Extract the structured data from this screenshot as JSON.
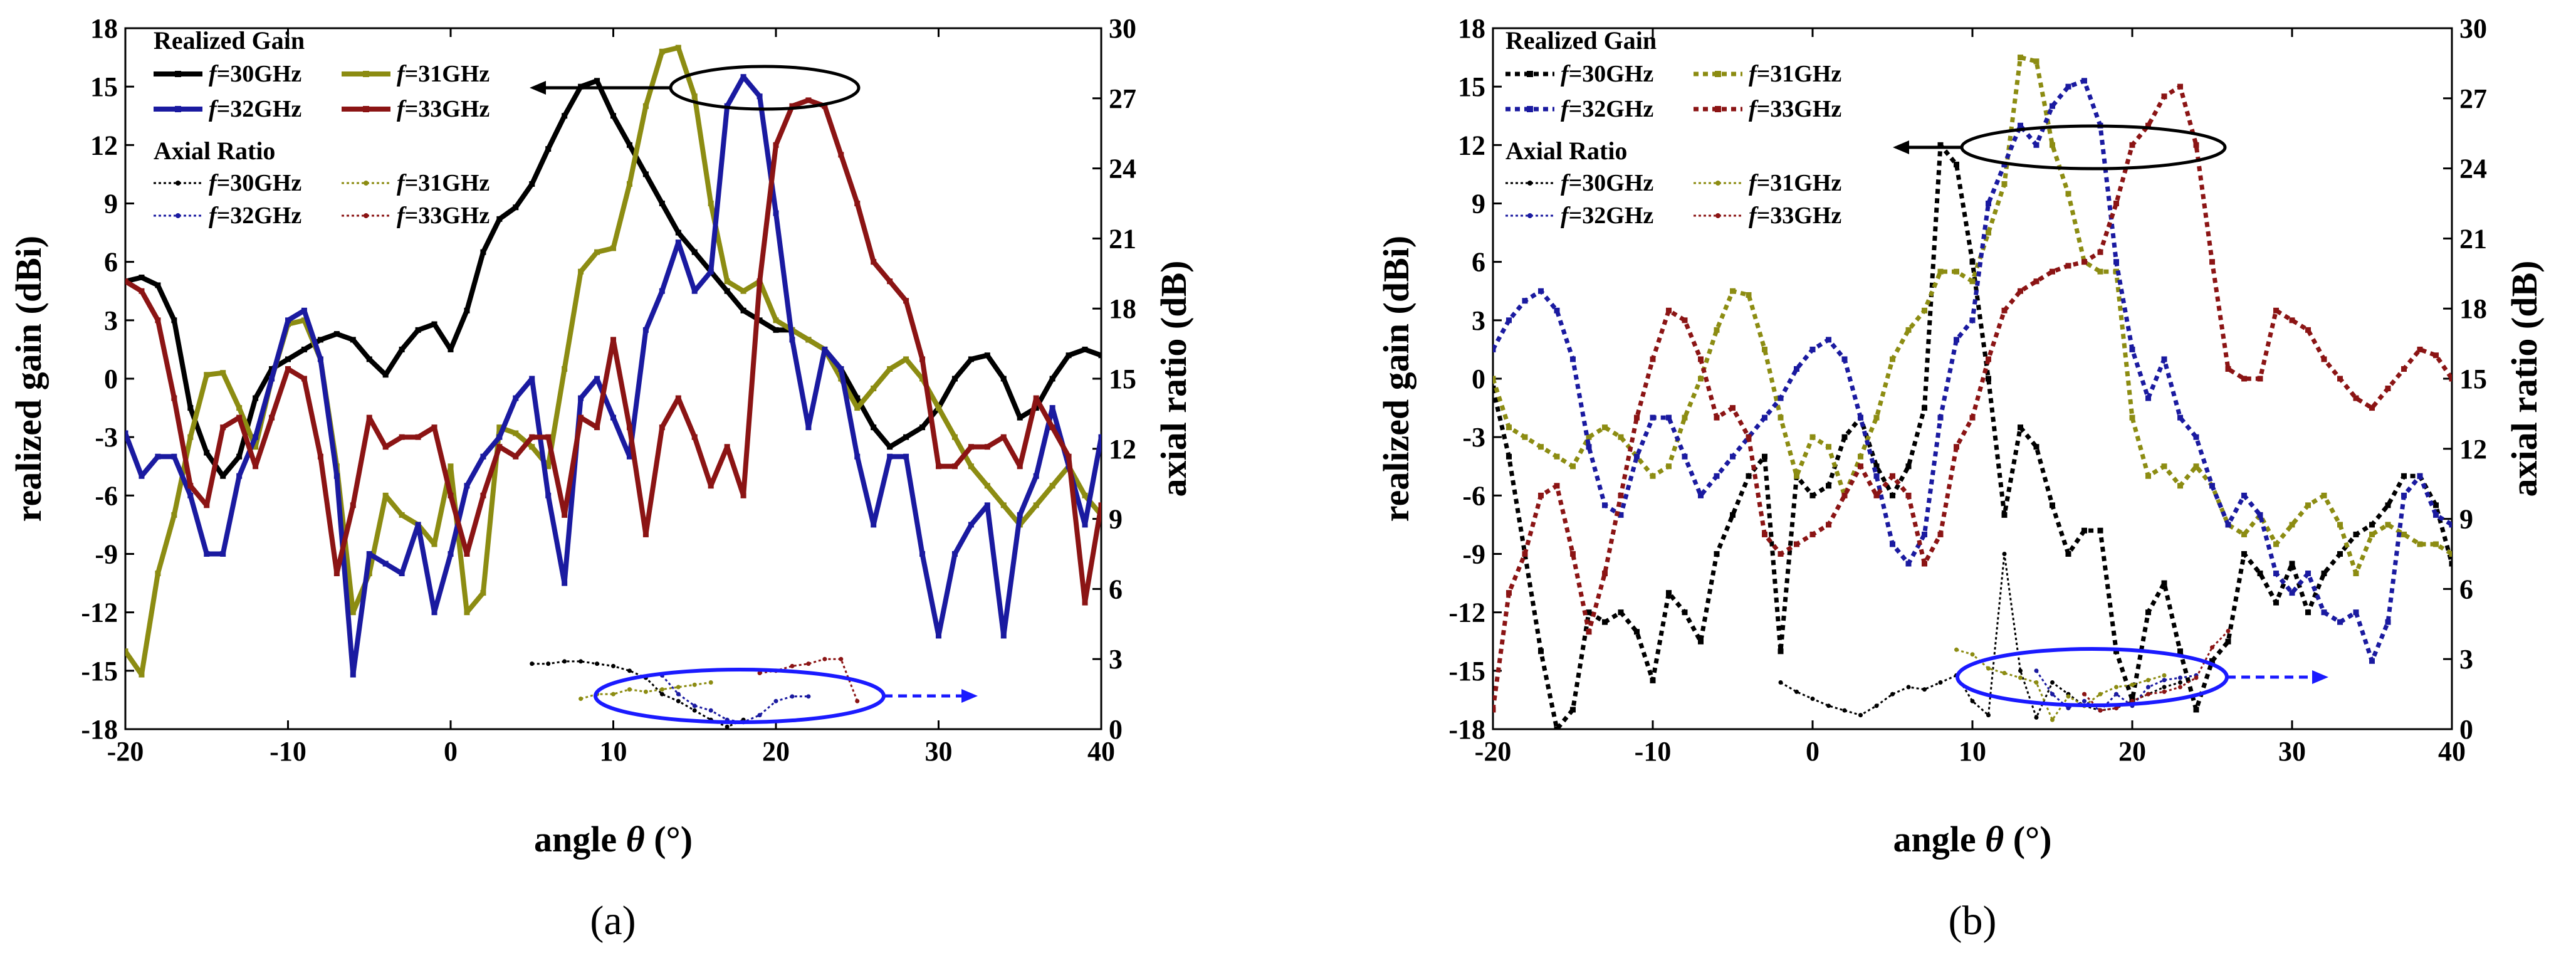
{
  "chart_data": [
    {
      "panel_label": "(a)",
      "type": "line",
      "xlabel": "angle θ (°)",
      "ylabel": "realized gain (dBi)",
      "y2label": "axial ratio (dB)",
      "xlim": [
        -20,
        40
      ],
      "ylim": [
        -18,
        18
      ],
      "y2lim": [
        0,
        30
      ],
      "xticks": [
        -20,
        -10,
        0,
        10,
        20,
        30,
        40
      ],
      "yticks": [
        -18,
        -15,
        -12,
        -9,
        -6,
        -3,
        0,
        3,
        6,
        9,
        12,
        15,
        18
      ],
      "y2ticks": [
        0,
        3,
        6,
        9,
        12,
        15,
        18,
        21,
        24,
        27,
        30
      ],
      "legend_title_gain": "Realized Gain",
      "legend_title_ar": "Axial Ratio",
      "gain_style": "solid",
      "x": [
        -20,
        -19,
        -18,
        -17,
        -16,
        -15,
        -14,
        -13,
        -12,
        -11,
        -10,
        -9,
        -8,
        -7,
        -6,
        -5,
        -4,
        -3,
        -2,
        -1,
        0,
        1,
        2,
        3,
        4,
        5,
        6,
        7,
        8,
        9,
        10,
        11,
        12,
        13,
        14,
        15,
        16,
        17,
        18,
        19,
        20,
        21,
        22,
        23,
        24,
        25,
        26,
        27,
        28,
        29,
        30,
        31,
        32,
        33,
        34,
        35,
        36,
        37,
        38,
        39,
        40
      ],
      "series_gain": [
        {
          "name": "f=30GHz",
          "freq": "=30GHz",
          "color": "#000000",
          "values": [
            5.0,
            5.2,
            4.8,
            3.0,
            -1.5,
            -3.8,
            -5.0,
            -4.0,
            -1.0,
            0.5,
            1.0,
            1.5,
            2.0,
            2.3,
            2.0,
            1.0,
            0.2,
            1.5,
            2.5,
            2.8,
            1.5,
            3.5,
            6.5,
            8.2,
            8.8,
            10.0,
            11.8,
            13.5,
            15.0,
            15.3,
            13.5,
            12.0,
            10.5,
            9.0,
            7.5,
            6.5,
            5.5,
            4.5,
            3.5,
            3.0,
            2.5,
            2.5,
            2.0,
            1.5,
            0.5,
            -1.0,
            -2.5,
            -3.5,
            -3.0,
            -2.5,
            -1.5,
            0.0,
            1.0,
            1.2,
            0.0,
            -2.0,
            -1.5,
            0.0,
            1.2,
            1.5,
            1.2
          ]
        },
        {
          "name": "f=31GHz",
          "freq": "=31GHz",
          "color": "#8c8c12",
          "values": [
            -14.0,
            -15.2,
            -10.0,
            -7.0,
            -3.0,
            0.2,
            0.3,
            -1.5,
            -3.5,
            0.0,
            2.8,
            3.0,
            1.0,
            -4.5,
            -12.0,
            -10.0,
            -6.0,
            -7.0,
            -7.5,
            -8.5,
            -4.5,
            -12.0,
            -11.0,
            -2.5,
            -2.8,
            -3.5,
            -4.5,
            0.5,
            5.5,
            6.5,
            6.7,
            10.0,
            14.0,
            16.8,
            17.0,
            14.5,
            9.0,
            5.0,
            4.5,
            5.0,
            3.0,
            2.5,
            2.0,
            1.5,
            0.0,
            -1.5,
            -0.5,
            0.5,
            1.0,
            0.0,
            -1.5,
            -3.0,
            -4.5,
            -5.5,
            -6.5,
            -7.5,
            -6.5,
            -5.5,
            -4.5,
            -6.0,
            -7.0
          ]
        },
        {
          "name": "f=32GHz",
          "freq": "=32GHz",
          "color": "#1a1aa0",
          "values": [
            -2.8,
            -5.0,
            -4.0,
            -4.0,
            -6.0,
            -9.0,
            -9.0,
            -5.0,
            -3.0,
            0.0,
            3.0,
            3.5,
            1.0,
            -5.0,
            -15.2,
            -9.0,
            -9.5,
            -10.0,
            -7.5,
            -12.0,
            -9.0,
            -5.5,
            -4.0,
            -3.0,
            -1.0,
            0.0,
            -6.0,
            -10.5,
            -1.0,
            0.0,
            -2.0,
            -4.0,
            2.5,
            4.5,
            7.0,
            4.5,
            5.5,
            14.0,
            15.5,
            14.5,
            8.5,
            2.0,
            -2.5,
            1.5,
            0.5,
            -4.0,
            -7.5,
            -4.0,
            -4.0,
            -9.0,
            -13.2,
            -9.0,
            -7.5,
            -6.5,
            -13.2,
            -7.0,
            -5.0,
            -1.5,
            -4.5,
            -7.5,
            -3.0
          ]
        },
        {
          "name": "f=33GHz",
          "freq": "=33GHz",
          "color": "#8b1414",
          "values": [
            5.0,
            4.5,
            3.0,
            -1.0,
            -5.5,
            -6.5,
            -2.5,
            -2.0,
            -4.5,
            -2.0,
            0.5,
            0.0,
            -4.0,
            -10.0,
            -6.5,
            -2.0,
            -3.5,
            -3.0,
            -3.0,
            -2.5,
            -6.0,
            -9.0,
            -6.0,
            -3.5,
            -4.0,
            -3.0,
            -3.0,
            -7.0,
            -2.0,
            -2.5,
            2.0,
            -2.5,
            -8.0,
            -2.5,
            -1.0,
            -3.0,
            -5.5,
            -3.5,
            -6.0,
            5.0,
            12.0,
            14.0,
            14.3,
            14.0,
            11.5,
            9.0,
            6.0,
            5.0,
            4.0,
            1.0,
            -4.5,
            -4.5,
            -3.5,
            -3.5,
            -3.0,
            -4.5,
            -1.0,
            -2.5,
            -4.0,
            -11.5,
            -6.5
          ]
        }
      ],
      "series_ar": [
        {
          "name": "f=30GHz",
          "freq": "=30GHz",
          "color": "#000000",
          "x": [
            5,
            6,
            7,
            8,
            9,
            10,
            11,
            12,
            13,
            14,
            15,
            16,
            17,
            18
          ],
          "values": [
            2.8,
            2.8,
            2.9,
            2.9,
            2.8,
            2.7,
            2.5,
            2.2,
            1.5,
            1.2,
            0.8,
            0.4,
            0.1,
            0.4
          ]
        },
        {
          "name": "f=31GHz",
          "freq": "=31GHz",
          "color": "#8c8c12",
          "x": [
            8,
            9,
            10,
            11,
            12,
            13,
            14,
            15,
            16
          ],
          "values": [
            1.3,
            1.5,
            1.5,
            1.7,
            1.6,
            1.7,
            1.8,
            1.9,
            2.0
          ]
        },
        {
          "name": "f=32GHz",
          "freq": "=32GHz",
          "color": "#1a1aa0",
          "x": [
            13,
            14,
            15,
            16,
            17,
            18,
            19,
            20,
            21,
            22
          ],
          "values": [
            2.3,
            1.5,
            1.0,
            0.8,
            0.4,
            0.3,
            0.6,
            1.2,
            1.4,
            1.4
          ]
        },
        {
          "name": "f=33GHz",
          "freq": "=33GHz",
          "color": "#8b1414",
          "x": [
            19,
            20,
            21,
            22,
            23,
            24,
            25
          ],
          "values": [
            2.4,
            2.5,
            2.7,
            2.8,
            3.0,
            3.0,
            1.2
          ]
        }
      ]
    },
    {
      "panel_label": "(b)",
      "type": "line",
      "xlabel": "angle θ (°)",
      "ylabel": "realized gain (dBi)",
      "y2label": "axial ratio (dB)",
      "xlim": [
        -20,
        40
      ],
      "ylim": [
        -18,
        18
      ],
      "y2lim": [
        0,
        30
      ],
      "xticks": [
        -20,
        -10,
        0,
        10,
        20,
        30,
        40
      ],
      "yticks": [
        -18,
        -15,
        -12,
        -9,
        -6,
        -3,
        0,
        3,
        6,
        9,
        12,
        15,
        18
      ],
      "y2ticks": [
        0,
        3,
        6,
        9,
        12,
        15,
        18,
        21,
        24,
        27,
        30
      ],
      "legend_title_gain": "Realized Gain",
      "legend_title_ar": "Axial Ratio",
      "gain_style": "dashed",
      "x": [
        -20,
        -19,
        -18,
        -17,
        -16,
        -15,
        -14,
        -13,
        -12,
        -11,
        -10,
        -9,
        -8,
        -7,
        -6,
        -5,
        -4,
        -3,
        -2,
        -1,
        0,
        1,
        2,
        3,
        4,
        5,
        6,
        7,
        8,
        9,
        10,
        11,
        12,
        13,
        14,
        15,
        16,
        17,
        18,
        19,
        20,
        21,
        22,
        23,
        24,
        25,
        26,
        27,
        28,
        29,
        30,
        31,
        32,
        33,
        34,
        35,
        36,
        37,
        38,
        39,
        40
      ],
      "series_gain": [
        {
          "name": "f=30GHz",
          "freq": "=30GHz",
          "color": "#000000",
          "values": [
            -0.5,
            -4.0,
            -9.0,
            -14.0,
            -18.0,
            -17.0,
            -12.0,
            -12.5,
            -12.0,
            -13.0,
            -15.5,
            -11.0,
            -12.0,
            -13.5,
            -9.0,
            -7.0,
            -5.0,
            -4.0,
            -14.0,
            -5.0,
            -6.0,
            -5.5,
            -3.0,
            -2.0,
            -4.5,
            -6.0,
            -4.5,
            -1.5,
            12.0,
            11.0,
            6.0,
            0.0,
            -7.0,
            -2.5,
            -3.5,
            -6.5,
            -9.0,
            -7.8,
            -7.8,
            -14.0,
            -16.5,
            -12.0,
            -10.5,
            -14.0,
            -17.0,
            -14.5,
            -13.5,
            -9.0,
            -10.0,
            -11.5,
            -9.5,
            -12.0,
            -10.0,
            -9.0,
            -8.0,
            -7.5,
            -6.5,
            -5.0,
            -5.0,
            -6.5,
            -9.5
          ]
        },
        {
          "name": "f=31GHz",
          "freq": "=31GHz",
          "color": "#8c8c12",
          "values": [
            0.0,
            -2.5,
            -3.0,
            -3.5,
            -4.0,
            -4.5,
            -3.0,
            -2.5,
            -3.0,
            -4.0,
            -5.0,
            -4.5,
            -2.0,
            0.0,
            2.5,
            4.5,
            4.3,
            1.5,
            -2.0,
            -5.0,
            -3.0,
            -3.5,
            -6.0,
            -4.0,
            -2.0,
            1.0,
            2.5,
            3.5,
            5.5,
            5.5,
            5.0,
            7.5,
            10.0,
            16.5,
            16.3,
            12.0,
            9.5,
            6.0,
            5.5,
            5.5,
            -2.0,
            -5.0,
            -4.5,
            -5.5,
            -4.5,
            -5.5,
            -7.5,
            -8.0,
            -7.0,
            -8.5,
            -7.5,
            -6.5,
            -6.0,
            -7.5,
            -10.0,
            -8.0,
            -7.5,
            -8.0,
            -8.5,
            -8.5,
            -9.0
          ]
        },
        {
          "name": "f=32GHz",
          "freq": "=32GHz",
          "color": "#1a1aa0",
          "values": [
            1.5,
            3.0,
            4.0,
            4.5,
            3.5,
            1.0,
            -3.5,
            -6.5,
            -7.0,
            -4.0,
            -2.0,
            -2.0,
            -4.0,
            -6.0,
            -5.0,
            -4.0,
            -3.0,
            -2.0,
            -1.0,
            0.5,
            1.5,
            2.0,
            1.0,
            -2.0,
            -5.0,
            -8.5,
            -9.5,
            -8.0,
            -2.0,
            2.0,
            3.0,
            9.0,
            11.0,
            13.0,
            12.0,
            14.0,
            15.0,
            15.3,
            13.0,
            6.0,
            1.5,
            -1.0,
            1.0,
            -2.0,
            -3.0,
            -5.5,
            -7.5,
            -6.0,
            -7.0,
            -10.0,
            -11.0,
            -10.0,
            -12.0,
            -12.5,
            -12.0,
            -14.5,
            -12.5,
            -6.0,
            -5.0,
            -7.0,
            -7.5
          ]
        },
        {
          "name": "f=33GHz",
          "freq": "=33GHz",
          "color": "#8b1414",
          "values": [
            -17.0,
            -11.0,
            -9.0,
            -6.0,
            -5.5,
            -9.0,
            -13.0,
            -10.0,
            -6.0,
            -2.0,
            1.0,
            3.5,
            3.0,
            1.0,
            -2.0,
            -1.5,
            -3.0,
            -8.0,
            -9.0,
            -8.5,
            -8.0,
            -7.5,
            -6.0,
            -4.5,
            -6.0,
            -5.0,
            -6.0,
            -9.5,
            -8.0,
            -3.5,
            -2.0,
            1.0,
            3.5,
            4.5,
            5.0,
            5.5,
            5.8,
            6.0,
            6.5,
            9.0,
            12.0,
            13.0,
            14.5,
            15.0,
            12.0,
            6.0,
            0.5,
            0.0,
            0.0,
            3.5,
            3.0,
            2.5,
            1.0,
            0.0,
            -1.0,
            -1.5,
            -0.5,
            0.5,
            1.5,
            1.2,
            0.0
          ]
        }
      ],
      "series_ar": [
        {
          "name": "f=30GHz",
          "freq": "=30GHz",
          "color": "#000000",
          "x": [
            -2,
            -1,
            0,
            1,
            2,
            3,
            4,
            5,
            6,
            7,
            8,
            9,
            10,
            11,
            12,
            13,
            14,
            15,
            16,
            17,
            18,
            19,
            20,
            21,
            22,
            23
          ],
          "values": [
            2.0,
            1.6,
            1.3,
            1.0,
            0.8,
            0.6,
            1.0,
            1.5,
            1.8,
            1.7,
            2.0,
            2.3,
            1.2,
            0.6,
            7.5,
            2.5,
            0.5,
            2.0,
            1.5,
            1.0,
            0.8,
            0.9,
            1.2,
            1.5,
            1.8,
            2.0
          ]
        },
        {
          "name": "f=31GHz",
          "freq": "=31GHz",
          "color": "#8c8c12",
          "x": [
            9,
            10,
            11,
            12,
            13,
            14,
            15,
            16,
            17,
            18,
            19,
            20,
            21,
            22
          ],
          "values": [
            3.4,
            3.2,
            2.6,
            2.4,
            2.2,
            2.0,
            0.4,
            1.4,
            1.0,
            1.5,
            1.8,
            1.9,
            2.1,
            2.3
          ]
        },
        {
          "name": "f=32GHz",
          "freq": "=32GHz",
          "color": "#1a1aa0",
          "x": [
            14,
            15,
            16,
            17,
            18,
            19,
            20,
            21,
            22,
            23,
            24
          ],
          "values": [
            2.5,
            1.5,
            0.9,
            1.2,
            0.8,
            1.5,
            1.0,
            1.8,
            2.1,
            2.2,
            2.3
          ]
        },
        {
          "name": "f=33GHz",
          "freq": "=33GHz",
          "color": "#8b1414",
          "x": [
            17,
            18,
            19,
            20,
            21,
            22,
            23,
            24,
            25,
            26
          ],
          "values": [
            1.5,
            0.8,
            0.9,
            1.2,
            1.5,
            1.6,
            1.8,
            2.2,
            3.5,
            4.2
          ]
        }
      ]
    }
  ]
}
